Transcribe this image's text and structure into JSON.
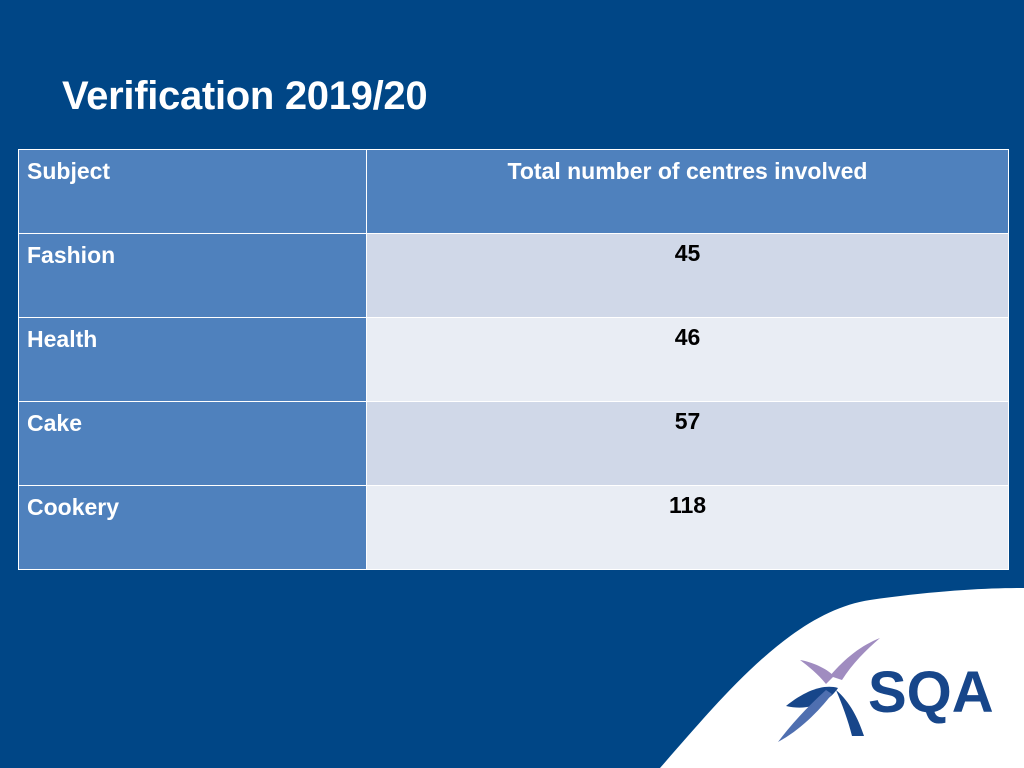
{
  "slide": {
    "title": "Verification 2019/20"
  },
  "table": {
    "headers": {
      "subject": "Subject",
      "centres": "Total number of centres involved"
    },
    "rows": [
      {
        "subject": "Fashion",
        "centres": "45"
      },
      {
        "subject": "Health",
        "centres": "46"
      },
      {
        "subject": "Cake",
        "centres": "57"
      },
      {
        "subject": "Cookery",
        "centres": "118"
      }
    ]
  },
  "logo": {
    "text": "SQA",
    "icon": "sqa-saltire-icon"
  },
  "colors": {
    "background": "#004686",
    "header_cell": "#4f81bd",
    "band_dark": "#d0d8e8",
    "band_light": "#e9edf4",
    "logo_blue": "#17468a",
    "logo_purple": "#a08cc0"
  }
}
